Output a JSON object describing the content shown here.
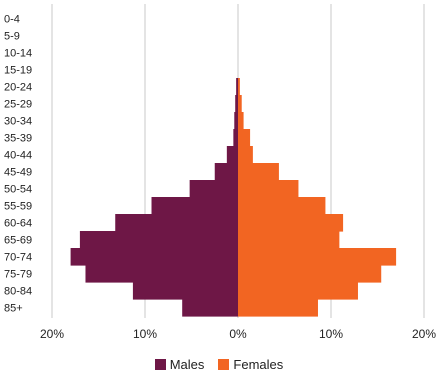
{
  "chart_data": {
    "type": "bar",
    "orientation": "horizontal",
    "categories": [
      "0-4",
      "5-9",
      "10-14",
      "15-19",
      "20-24",
      "25-29",
      "30-34",
      "35-39",
      "40-44",
      "45-49",
      "50-54",
      "55-59",
      "60-64",
      "65-69",
      "70-74",
      "75-79",
      "80-84",
      "85+"
    ],
    "series": [
      {
        "name": "Males",
        "color": "#6e1746",
        "values": [
          0,
          0,
          0,
          0,
          0.2,
          0.3,
          0.4,
          0.5,
          1.2,
          2.5,
          5.2,
          9.3,
          13.2,
          17.0,
          18.0,
          16.4,
          11.3,
          6.0
        ]
      },
      {
        "name": "Females",
        "color": "#f26522",
        "values": [
          0,
          0,
          0,
          0,
          0.2,
          0.4,
          0.6,
          1.3,
          1.6,
          4.4,
          6.5,
          9.4,
          11.3,
          10.9,
          17.0,
          15.4,
          12.9,
          8.6
        ]
      }
    ],
    "xlim": [
      -20,
      20
    ],
    "xticks": [
      "20%",
      "10%",
      "0%",
      "10%",
      "20%"
    ],
    "grid": true,
    "legend": "bottom-center"
  }
}
